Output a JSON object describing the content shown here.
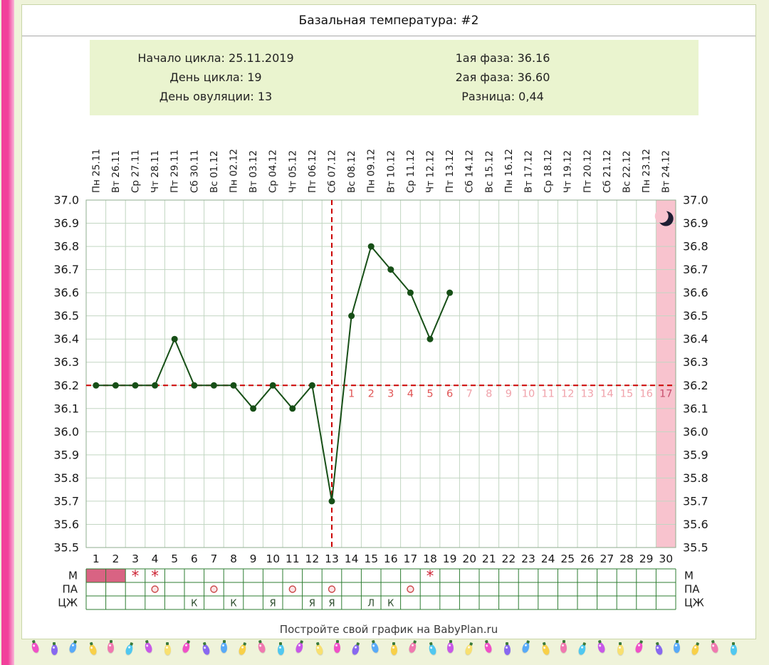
{
  "page": {
    "title": "Базальная температура: #2",
    "footer": "Постройте свой график на BabyPlan.ru"
  },
  "info": {
    "left": [
      "Начало цикла: 25.11.2019",
      "День цикла: 19",
      "День овуляции: 13"
    ],
    "right": [
      "1ая фаза: 36.16",
      "2ая фаза: 36.60",
      "Разница: 0,44"
    ]
  },
  "chart_data": {
    "type": "line",
    "title": "Базальная температура: #2",
    "ylim": [
      35.5,
      37.0
    ],
    "ytick_step": 0.1,
    "cycle_days": 30,
    "dates": [
      "Пн 25.11",
      "Вт 26.11",
      "Ср 27.11",
      "Чт 28.11",
      "Пт 29.11",
      "Сб 30.11",
      "Вс 01.12",
      "Пн 02.12",
      "Вт 03.12",
      "Ср 04.12",
      "Чт 05.12",
      "Пт 06.12",
      "Сб 07.12",
      "Вс 08.12",
      "Пн 09.12",
      "Вт 10.12",
      "Ср 11.12",
      "Чт 12.12",
      "Пт 13.12",
      "Сб 14.12",
      "Вс 15.12",
      "Пн 16.12",
      "Вт 17.12",
      "Ср 18.12",
      "Чт 19.12",
      "Пт 20.12",
      "Сб 21.12",
      "Вс 22.12",
      "Пн 23.12",
      "Вт 24.12"
    ],
    "temps": [
      36.2,
      36.2,
      36.2,
      36.2,
      36.4,
      36.2,
      36.2,
      36.2,
      36.1,
      36.2,
      36.1,
      36.2,
      35.7,
      36.5,
      36.8,
      36.7,
      36.6,
      36.4,
      36.6
    ],
    "coverline": 36.2,
    "ovulation_day": 13,
    "dpo_count": 17,
    "pink_column_day": 30,
    "moon": {
      "day": 30,
      "temp": 36.92
    },
    "symptom_rows": [
      "М",
      "ПА",
      "ЦЖ"
    ],
    "menstruation_days": [
      1,
      2
    ],
    "spotting_days": [
      3,
      4,
      18
    ],
    "pa_days": [
      4,
      7,
      11,
      13,
      17
    ],
    "cj_entries": [
      {
        "day": 6,
        "letter": "К"
      },
      {
        "day": 8,
        "letter": "К"
      },
      {
        "day": 10,
        "letter": "Я"
      },
      {
        "day": 12,
        "letter": "Я"
      },
      {
        "day": 13,
        "letter": "Я"
      },
      {
        "day": 15,
        "letter": "Л"
      },
      {
        "day": 16,
        "letter": "К"
      }
    ]
  },
  "colors": {
    "page_bg": "#eff3da",
    "panel_bg": "#ffffff",
    "left_strip": "#f2409b",
    "info_bg": "#eaf4cf",
    "grid": "#c2d6c2",
    "plot_border": "#8fae8f",
    "series": "#174f17",
    "red": "#cc0000",
    "dpo_early": "#e05555",
    "dpo_late": "#f0a3ab",
    "dpo_last": "#c8506e",
    "pink_column": "#f8c3ce",
    "mens_fill": "#d96383",
    "asterisk": "#cc2233",
    "pa_stroke": "#cc4949",
    "pa_fill": "#fbe3e6",
    "table_border": "#2e7d32",
    "cj_letter": "#2a4a2a",
    "text": "#1a1a1a",
    "moon": "#1e1e32"
  },
  "garland": {
    "count": 38,
    "bulb_colors": [
      "#f050c8",
      "#8868f0",
      "#58aaf8",
      "#f8d048",
      "#f078b0",
      "#50c8f0",
      "#c858e8",
      "#f8e070"
    ]
  }
}
